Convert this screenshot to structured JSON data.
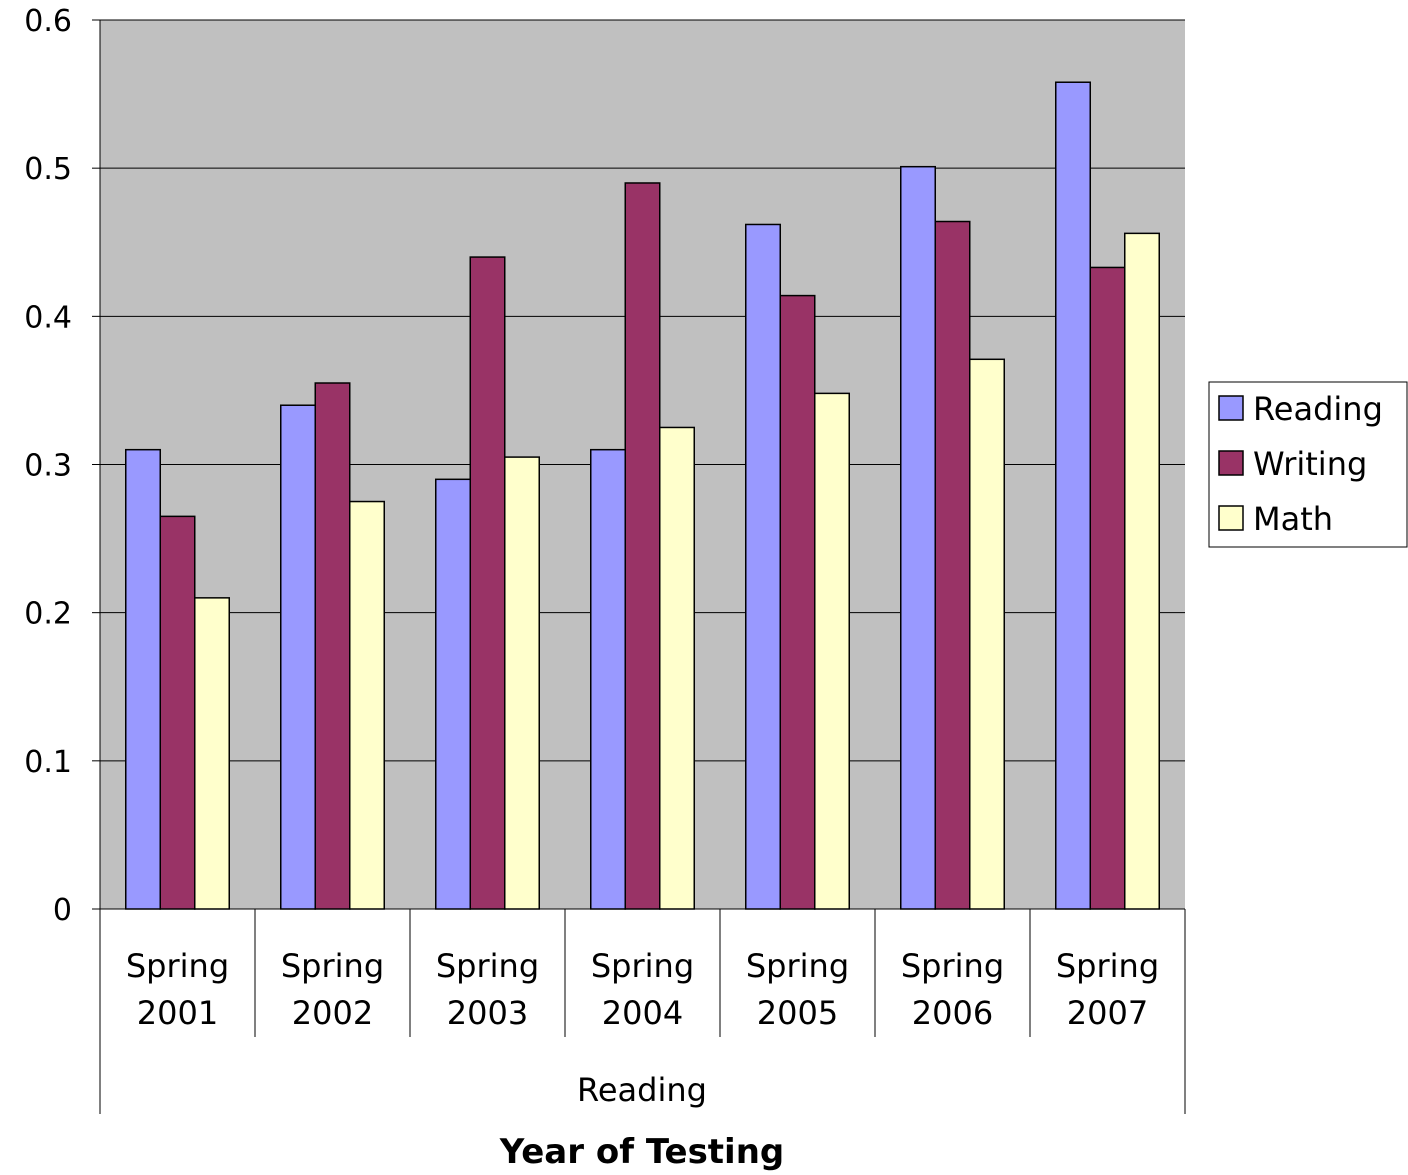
{
  "chart_data": {
    "type": "bar",
    "categories": [
      [
        "Spring",
        "2001"
      ],
      [
        "Spring",
        "2002"
      ],
      [
        "Spring",
        "2003"
      ],
      [
        "Spring",
        "2004"
      ],
      [
        "Spring",
        "2005"
      ],
      [
        "Spring",
        "2006"
      ],
      [
        "Spring",
        "2007"
      ]
    ],
    "group_label": "Reading",
    "series": [
      {
        "name": "Reading",
        "color": "#9999ff",
        "values": [
          0.31,
          0.34,
          0.29,
          0.31,
          0.462,
          0.501,
          0.558
        ]
      },
      {
        "name": "Writing",
        "color": "#993366",
        "values": [
          0.265,
          0.355,
          0.44,
          0.49,
          0.414,
          0.464,
          0.433
        ]
      },
      {
        "name": "Math",
        "color": "#ffffcc",
        "values": [
          0.21,
          0.275,
          0.305,
          0.325,
          0.348,
          0.371,
          0.456
        ]
      }
    ],
    "xlabel": "Year of Testing",
    "ylabel": "",
    "ylim": [
      0,
      0.6
    ],
    "yticks": [
      "0",
      "0.1",
      "0.2",
      "0.3",
      "0.4",
      "0.5",
      "0.6"
    ],
    "plot_background": "#c0c0c0",
    "grid": true,
    "legend_position": "right"
  }
}
